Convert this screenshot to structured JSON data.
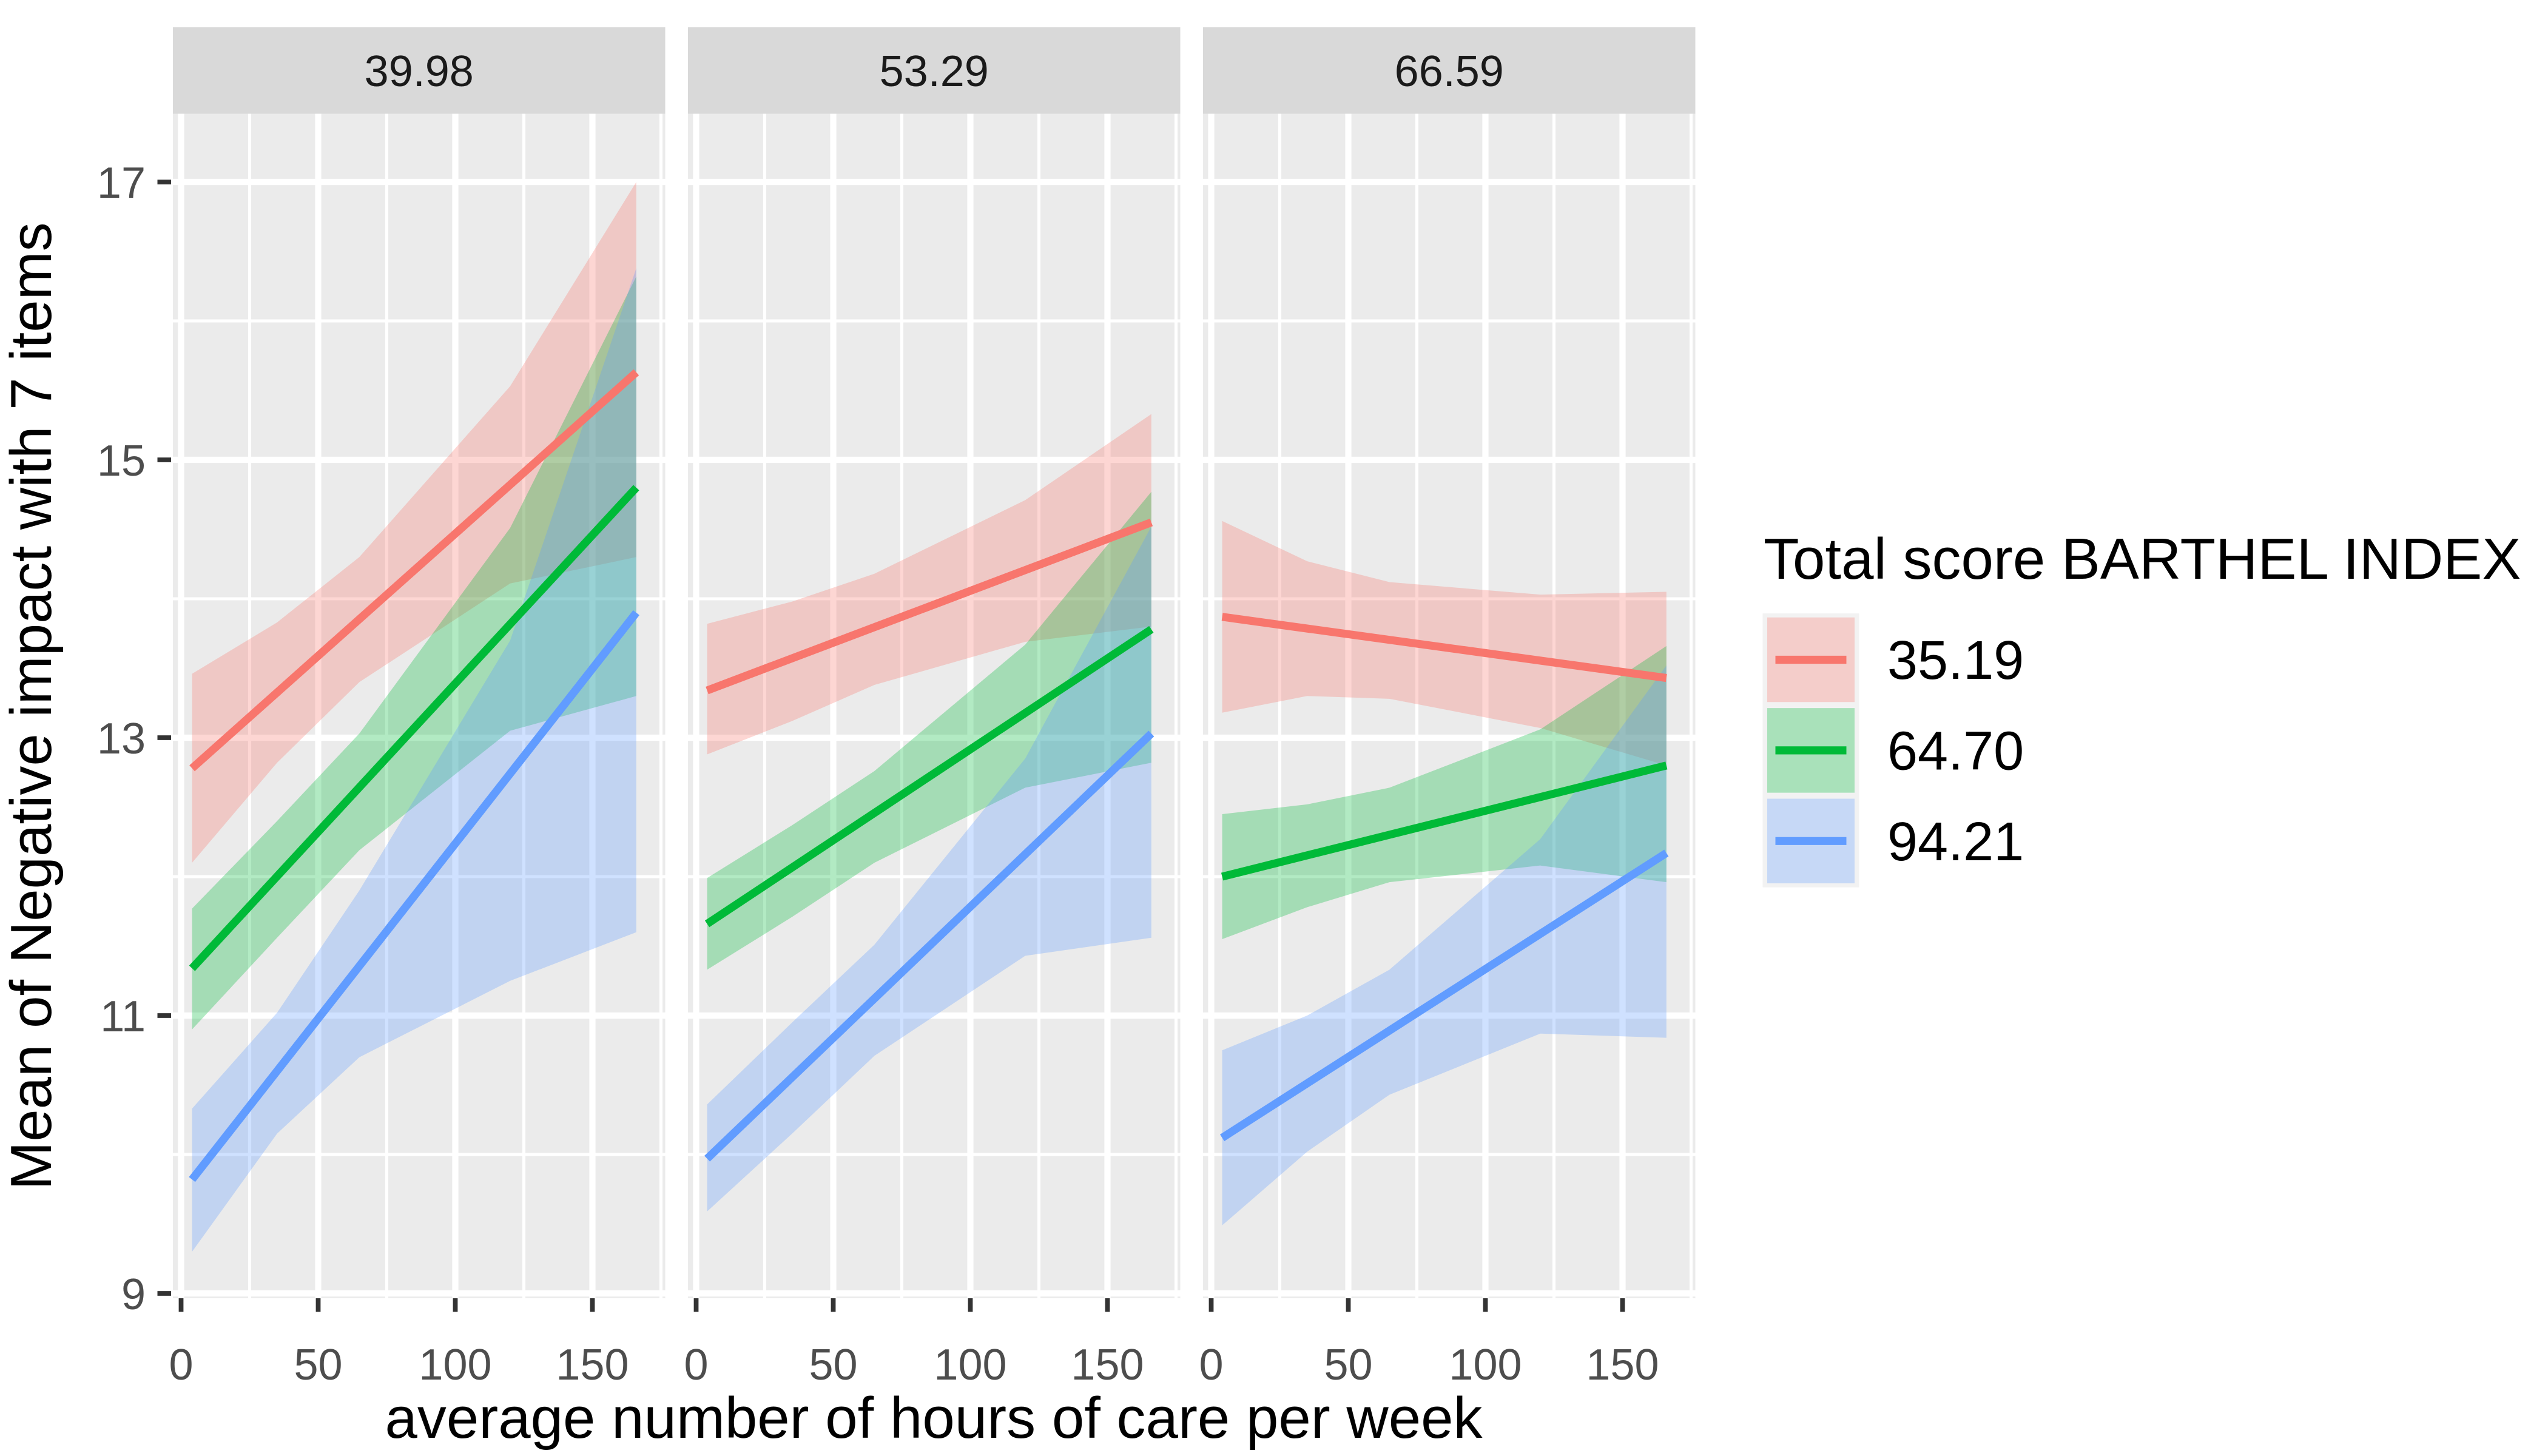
{
  "chart_data": {
    "type": "line",
    "description": "Faceted interaction plot with linear fit lines and confidence ribbons",
    "xlabel": "average number of hours of care per week",
    "ylabel": "Mean of Negative impact with 7 items",
    "x_ticks": [
      0,
      50,
      100,
      150
    ],
    "x_minor_ticks": [
      25,
      75,
      125,
      175
    ],
    "y_ticks": [
      9,
      11,
      13,
      15,
      17
    ],
    "y_minor_ticks": [
      10,
      12,
      14,
      16
    ],
    "x_domain": [
      -3,
      176.5
    ],
    "y_domain": [
      8.97,
      17.49
    ],
    "grid": true,
    "panel_bg": "#EBEBEB",
    "strip_bg": "#D9D9D9",
    "grid_color": "#FFFFFF",
    "tick_color": "#333333",
    "axis_text_color": "#4D4D4D",
    "strip_text_color": "#1A1A1A",
    "ribbon_opacity": 0.3,
    "legend": {
      "title": "Total score BARTHEL INDEX",
      "position": "right",
      "entries": [
        {
          "label": "35.19",
          "color": "#F8766D"
        },
        {
          "label": "64.70",
          "color": "#00BA38"
        },
        {
          "label": "94.21",
          "color": "#619CFF"
        }
      ]
    },
    "facets": [
      {
        "label": "39.98",
        "series": [
          {
            "name": "35.19",
            "color": "#F8766D",
            "line": {
              "x": [
                4,
                166
              ],
              "y": [
                12.78,
                15.63
              ]
            },
            "ribbon": {
              "x": [
                4,
                35,
                65,
                120,
                166
              ],
              "lo": [
                12.1,
                12.82,
                13.4,
                14.11,
                14.3
              ],
              "hi": [
                13.46,
                13.83,
                14.3,
                15.53,
                17.0
              ]
            }
          },
          {
            "name": "64.70",
            "color": "#00BA38",
            "line": {
              "x": [
                4,
                166
              ],
              "y": [
                11.34,
                14.8
              ]
            },
            "ribbon": {
              "x": [
                4,
                35,
                65,
                120,
                166
              ],
              "lo": [
                10.9,
                11.56,
                12.19,
                13.05,
                13.3
              ],
              "hi": [
                11.77,
                12.4,
                13.03,
                14.51,
                16.32
              ]
            }
          },
          {
            "name": "94.21",
            "color": "#619CFF",
            "line": {
              "x": [
                4,
                166
              ],
              "y": [
                9.82,
                13.9
              ]
            },
            "ribbon": {
              "x": [
                4,
                35,
                65,
                120,
                166
              ],
              "lo": [
                9.3,
                10.15,
                10.7,
                11.25,
                11.6
              ],
              "hi": [
                10.33,
                11.02,
                11.9,
                13.7,
                16.38
              ]
            }
          }
        ]
      },
      {
        "label": "53.29",
        "series": [
          {
            "name": "35.19",
            "color": "#F8766D",
            "line": {
              "x": [
                4,
                166
              ],
              "y": [
                13.34,
                14.55
              ]
            },
            "ribbon": {
              "x": [
                4,
                35,
                65,
                120,
                166
              ],
              "lo": [
                12.88,
                13.12,
                13.38,
                13.69,
                13.8
              ],
              "hi": [
                13.82,
                13.98,
                14.18,
                14.71,
                15.33
              ]
            }
          },
          {
            "name": "64.70",
            "color": "#00BA38",
            "line": {
              "x": [
                4,
                166
              ],
              "y": [
                11.66,
                13.78
              ]
            },
            "ribbon": {
              "x": [
                4,
                35,
                65,
                120,
                166
              ],
              "lo": [
                11.33,
                11.71,
                12.1,
                12.64,
                12.82
              ],
              "hi": [
                11.99,
                12.37,
                12.76,
                13.67,
                14.77
              ]
            }
          },
          {
            "name": "94.21",
            "color": "#619CFF",
            "line": {
              "x": [
                4,
                166
              ],
              "y": [
                9.97,
                13.03
              ]
            },
            "ribbon": {
              "x": [
                4,
                35,
                65,
                120,
                166
              ],
              "lo": [
                9.59,
                10.15,
                10.71,
                11.43,
                11.56
              ],
              "hi": [
                10.36,
                10.95,
                11.51,
                12.85,
                14.52
              ]
            }
          }
        ]
      },
      {
        "label": "66.59",
        "series": [
          {
            "name": "35.19",
            "color": "#F8766D",
            "line": {
              "x": [
                4,
                166
              ],
              "y": [
                13.87,
                13.43
              ]
            },
            "ribbon": {
              "x": [
                4,
                35,
                65,
                120,
                166
              ],
              "lo": [
                13.18,
                13.3,
                13.28,
                13.07,
                12.8
              ],
              "hi": [
                14.56,
                14.27,
                14.12,
                14.03,
                14.05
              ]
            }
          },
          {
            "name": "64.70",
            "color": "#00BA38",
            "line": {
              "x": [
                4,
                166
              ],
              "y": [
                12.0,
                12.8
              ]
            },
            "ribbon": {
              "x": [
                4,
                35,
                65,
                120,
                166
              ],
              "lo": [
                11.55,
                11.78,
                11.96,
                12.08,
                11.96
              ],
              "hi": [
                12.45,
                12.52,
                12.64,
                13.06,
                13.66
              ]
            }
          },
          {
            "name": "94.21",
            "color": "#619CFF",
            "line": {
              "x": [
                4,
                166
              ],
              "y": [
                10.12,
                12.17
              ]
            },
            "ribbon": {
              "x": [
                4,
                35,
                65,
                120,
                166
              ],
              "lo": [
                9.49,
                10.02,
                10.43,
                10.87,
                10.84
              ],
              "hi": [
                10.75,
                11.0,
                11.33,
                12.27,
                13.52
              ]
            }
          }
        ]
      }
    ]
  }
}
